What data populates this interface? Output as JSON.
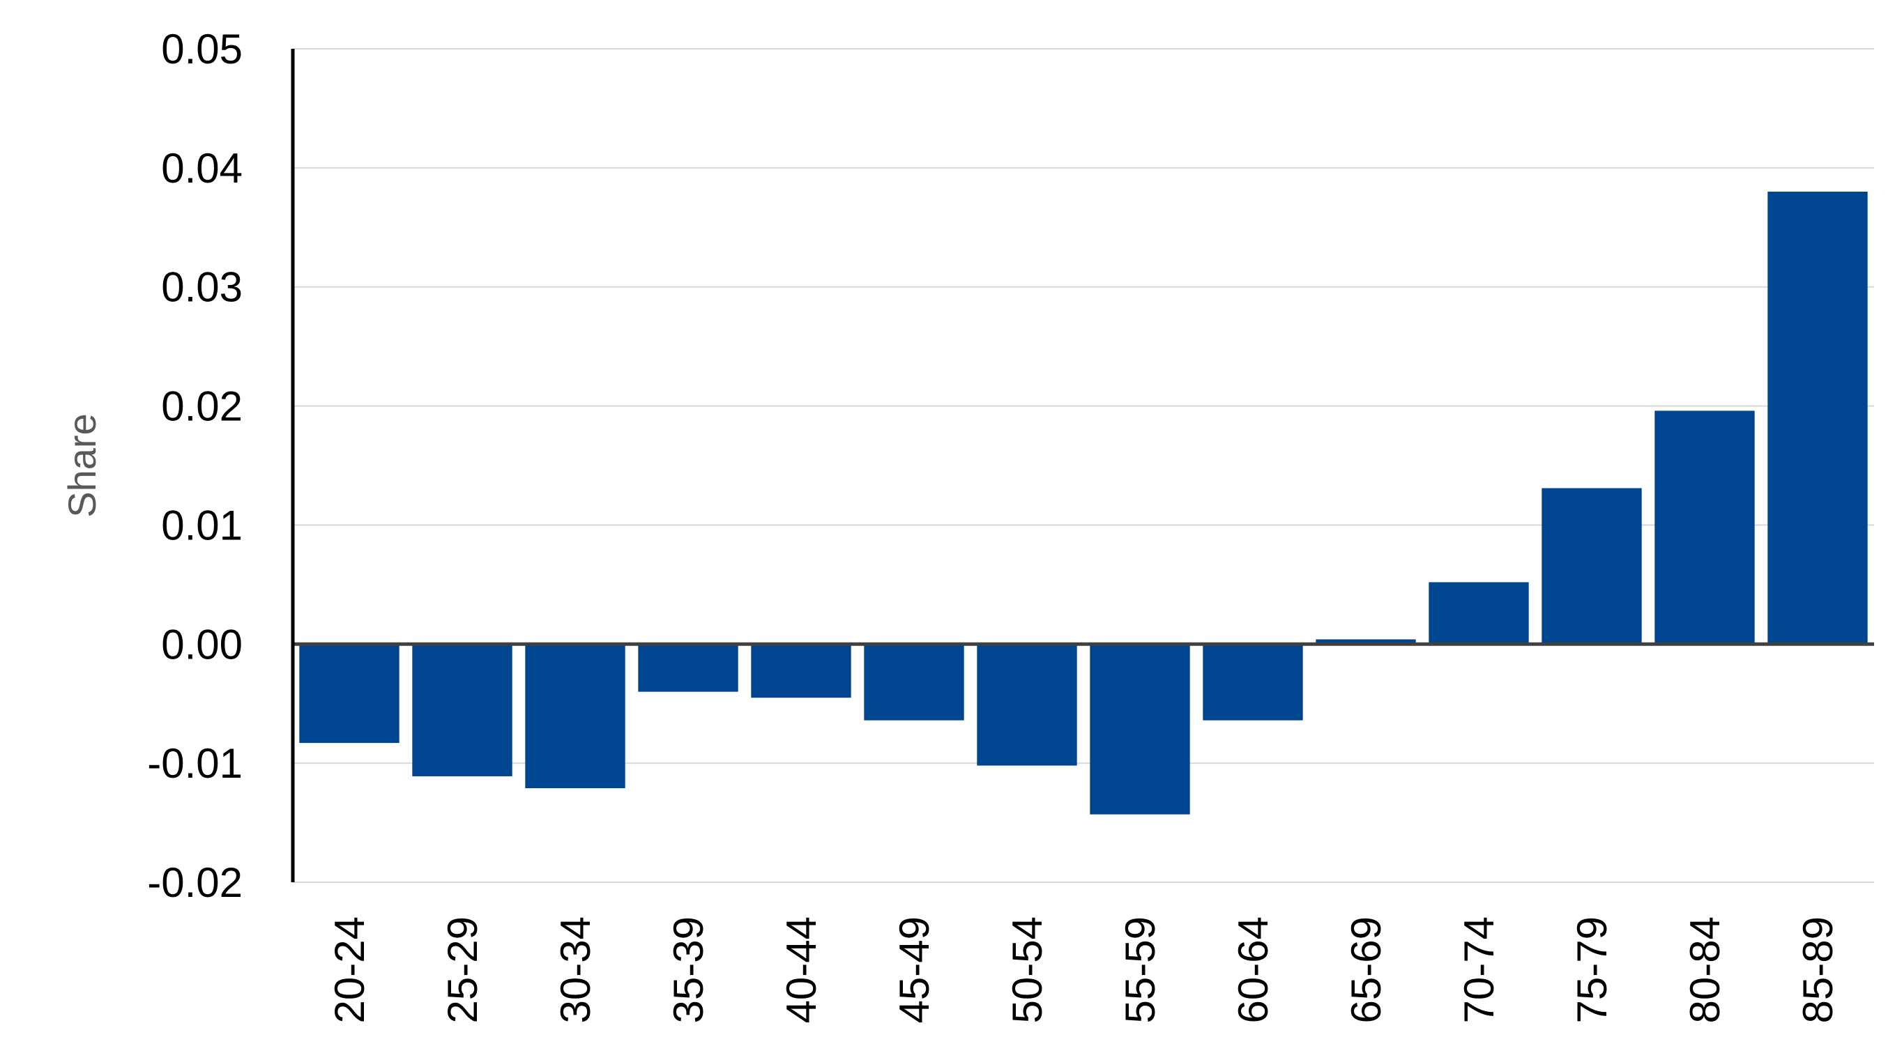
{
  "chart_data": {
    "type": "bar",
    "title": "",
    "xlabel": "",
    "ylabel": "Share",
    "categories": [
      "20-24",
      "25-29",
      "30-34",
      "35-39",
      "40-44",
      "45-49",
      "50-54",
      "55-59",
      "60-64",
      "65-69",
      "70-74",
      "75-79",
      "80-84",
      "85-89"
    ],
    "values": [
      -0.0083,
      -0.0111,
      -0.0121,
      -0.004,
      -0.0045,
      -0.0064,
      -0.0102,
      -0.0143,
      -0.0064,
      0.0004,
      0.0052,
      0.0131,
      0.0196,
      0.038
    ],
    "ylim": [
      -0.02,
      0.05
    ],
    "yticks": [
      "-0.02",
      "-0.01",
      "0.00",
      "0.01",
      "0.02",
      "0.03",
      "0.04",
      "0.05"
    ],
    "grid": true,
    "legend": "none",
    "colors": {
      "bar": "#00458f",
      "grid": "#d9d9d9",
      "axis": "#000000",
      "zero_line": "#404040",
      "ylabel": "#595959"
    }
  }
}
